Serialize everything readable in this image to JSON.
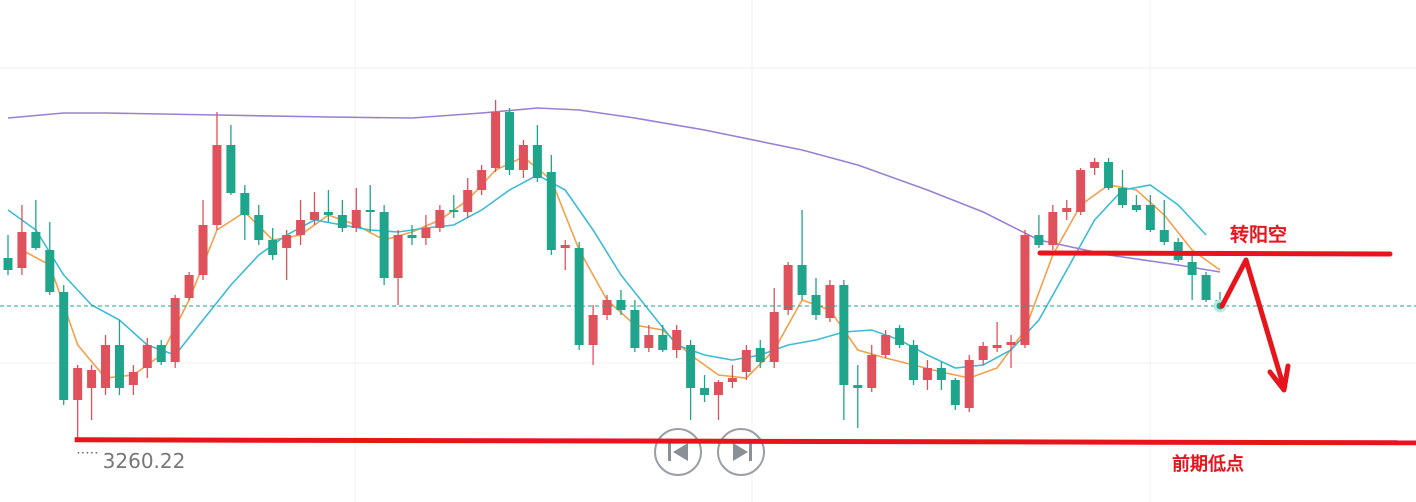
{
  "chart_data": {
    "type": "candlestick",
    "up_color": "#e0525b",
    "down_color": "#1ea58c",
    "ylim": [
      3254,
      3304.2
    ],
    "candles": [
      [
        3278.4,
        3280.7,
        3276.7,
        3277.2
      ],
      [
        3277.4,
        3283.7,
        3276.7,
        3281.0
      ],
      [
        3281.0,
        3284.2,
        3279.2,
        3279.4
      ],
      [
        3279.2,
        3282.0,
        3274.7,
        3275.0
      ],
      [
        3275.0,
        3275.7,
        3263.7,
        3264.2
      ],
      [
        3264.2,
        3267.7,
        3260.22,
        3267.4
      ],
      [
        3265.4,
        3267.7,
        3262.2,
        3267.2
      ],
      [
        3265.4,
        3270.7,
        3264.7,
        3269.7
      ],
      [
        3269.7,
        3272.2,
        3264.7,
        3265.4
      ],
      [
        3265.7,
        3267.7,
        3264.7,
        3267.0
      ],
      [
        3267.4,
        3270.4,
        3266.4,
        3269.7
      ],
      [
        3269.7,
        3270.2,
        3267.7,
        3268.0
      ],
      [
        3268.0,
        3274.7,
        3267.4,
        3274.4
      ],
      [
        3274.4,
        3277.0,
        3274.2,
        3276.7
      ],
      [
        3276.7,
        3284.2,
        3276.2,
        3281.7
      ],
      [
        3281.7,
        3293.0,
        3281.2,
        3289.7
      ],
      [
        3289.7,
        3291.7,
        3284.7,
        3284.9
      ],
      [
        3284.9,
        3285.7,
        3280.2,
        3282.7
      ],
      [
        3282.7,
        3283.7,
        3279.7,
        3280.2
      ],
      [
        3280.2,
        3281.4,
        3278.2,
        3278.7
      ],
      [
        3279.4,
        3281.2,
        3276.2,
        3280.7
      ],
      [
        3280.7,
        3284.2,
        3279.7,
        3282.2
      ],
      [
        3282.2,
        3285.0,
        3281.7,
        3283.0
      ],
      [
        3283.0,
        3285.2,
        3282.0,
        3282.7
      ],
      [
        3282.7,
        3284.2,
        3281.0,
        3281.4
      ],
      [
        3281.4,
        3285.4,
        3281.0,
        3283.2
      ],
      [
        3283.2,
        3285.7,
        3281.0,
        3283.0
      ],
      [
        3283.0,
        3283.7,
        3275.7,
        3276.4
      ],
      [
        3276.4,
        3281.2,
        3273.7,
        3280.7
      ],
      [
        3280.7,
        3281.7,
        3279.7,
        3280.4
      ],
      [
        3280.4,
        3282.7,
        3279.7,
        3281.4
      ],
      [
        3281.4,
        3283.7,
        3281.0,
        3283.2
      ],
      [
        3283.2,
        3284.7,
        3282.4,
        3283.0
      ],
      [
        3283.0,
        3286.4,
        3282.4,
        3285.2
      ],
      [
        3285.2,
        3287.7,
        3284.7,
        3287.2
      ],
      [
        3287.4,
        3294.2,
        3287.0,
        3293.0
      ],
      [
        3293.0,
        3293.4,
        3286.7,
        3287.2
      ],
      [
        3287.2,
        3290.2,
        3286.4,
        3289.7
      ],
      [
        3289.7,
        3291.7,
        3286.0,
        3286.4
      ],
      [
        3287.0,
        3288.7,
        3278.7,
        3279.2
      ],
      [
        3279.4,
        3280.2,
        3277.2,
        3279.7
      ],
      [
        3279.4,
        3280.0,
        3269.2,
        3269.7
      ],
      [
        3269.7,
        3273.7,
        3267.7,
        3272.7
      ],
      [
        3272.7,
        3274.7,
        3272.2,
        3274.2
      ],
      [
        3274.2,
        3275.2,
        3272.7,
        3273.2
      ],
      [
        3273.2,
        3274.2,
        3269.0,
        3269.4
      ],
      [
        3269.4,
        3271.7,
        3269.0,
        3270.7
      ],
      [
        3270.7,
        3271.7,
        3269.0,
        3269.2
      ],
      [
        3269.2,
        3271.7,
        3268.4,
        3271.2
      ],
      [
        3269.7,
        3270.2,
        3262.2,
        3265.4
      ],
      [
        3265.4,
        3266.7,
        3264.0,
        3264.7
      ],
      [
        3264.7,
        3266.2,
        3262.2,
        3266.0
      ],
      [
        3266.0,
        3267.7,
        3265.4,
        3266.4
      ],
      [
        3267.0,
        3269.7,
        3266.2,
        3269.2
      ],
      [
        3269.4,
        3270.2,
        3267.4,
        3268.0
      ],
      [
        3268.0,
        3275.4,
        3267.4,
        3273.0
      ],
      [
        3273.2,
        3278.0,
        3272.7,
        3277.7
      ],
      [
        3277.7,
        3283.2,
        3274.2,
        3274.7
      ],
      [
        3274.7,
        3276.4,
        3272.2,
        3272.7
      ],
      [
        3272.4,
        3276.2,
        3272.0,
        3275.7
      ],
      [
        3275.7,
        3276.2,
        3262.2,
        3265.7
      ],
      [
        3265.7,
        3267.7,
        3261.4,
        3265.4
      ],
      [
        3265.4,
        3269.7,
        3265.0,
        3268.7
      ],
      [
        3268.7,
        3271.2,
        3268.4,
        3270.7
      ],
      [
        3271.4,
        3271.7,
        3269.4,
        3269.7
      ],
      [
        3269.7,
        3270.2,
        3265.7,
        3266.2
      ],
      [
        3266.2,
        3268.2,
        3265.2,
        3267.4
      ],
      [
        3267.4,
        3268.0,
        3265.2,
        3266.2
      ],
      [
        3266.2,
        3266.4,
        3263.2,
        3263.7
      ],
      [
        3263.4,
        3268.7,
        3263.0,
        3268.2
      ],
      [
        3268.2,
        3270.0,
        3267.7,
        3269.6
      ],
      [
        3269.4,
        3272.0,
        3269.0,
        3269.7
      ],
      [
        3269.7,
        3270.7,
        3267.4,
        3270.0
      ],
      [
        3269.7,
        3281.2,
        3269.4,
        3280.7
      ],
      [
        3280.7,
        3282.7,
        3279.4,
        3279.7
      ],
      [
        3279.7,
        3283.7,
        3279.2,
        3283.0
      ],
      [
        3283.0,
        3284.2,
        3282.2,
        3283.4
      ],
      [
        3283.0,
        3287.4,
        3282.7,
        3287.2
      ],
      [
        3287.4,
        3288.4,
        3286.7,
        3288.0
      ],
      [
        3288.0,
        3288.4,
        3285.2,
        3285.4
      ],
      [
        3285.4,
        3287.2,
        3283.4,
        3283.7
      ],
      [
        3283.7,
        3284.7,
        3283.0,
        3283.2
      ],
      [
        3283.7,
        3284.7,
        3281.0,
        3281.2
      ],
      [
        3281.2,
        3284.2,
        3279.7,
        3280.0
      ],
      [
        3280.0,
        3280.4,
        3278.0,
        3278.2
      ],
      [
        3278.0,
        3278.7,
        3274.2,
        3276.7
      ],
      [
        3276.7,
        3277.0,
        3274.0,
        3274.2
      ],
      [
        3274.2,
        3275.0,
        3273.0,
        3273.6
      ]
    ],
    "lines": [
      {
        "color": "#f4a04a",
        "x": [
          1,
          3,
          5,
          7,
          9,
          11,
          13,
          15,
          17,
          19,
          21,
          23,
          25,
          27,
          29,
          31,
          33,
          35,
          37,
          39,
          41,
          43,
          45,
          47,
          49,
          51,
          53,
          55,
          57,
          59,
          61,
          63,
          65,
          67,
          69,
          71,
          73,
          75,
          77,
          79,
          81,
          83,
          85,
          87
        ],
        "values": [
          3279.2,
          3277.7,
          3269.7,
          3266.4,
          3266.7,
          3268.7,
          3274.2,
          3281.2,
          3283.0,
          3280.2,
          3280.7,
          3282.7,
          3281.7,
          3280.2,
          3281.0,
          3282.2,
          3284.2,
          3287.2,
          3288.5,
          3286.2,
          3279.2,
          3274.2,
          3271.7,
          3271.2,
          3268.7,
          3266.7,
          3266.4,
          3269.2,
          3274.2,
          3273.2,
          3269.2,
          3268.4,
          3267.7,
          3267.0,
          3266.4,
          3267.4,
          3271.2,
          3278.7,
          3283.7,
          3285.7,
          3285.2,
          3282.7,
          3279.2,
          3277.2
        ]
      },
      {
        "color": "#3cbcd6",
        "x": [
          0,
          2,
          4,
          6,
          8,
          10,
          12,
          14,
          16,
          18,
          20,
          22,
          24,
          26,
          28,
          30,
          32,
          34,
          36,
          38,
          40,
          42,
          44,
          46,
          48,
          50,
          52,
          54,
          56,
          58,
          60,
          62,
          64,
          66,
          68,
          70,
          72,
          74,
          76,
          78,
          80,
          82,
          84,
          86
        ],
        "values": [
          3283.2,
          3281.2,
          3276.7,
          3273.7,
          3272.2,
          3269.7,
          3268.7,
          3272.2,
          3275.7,
          3278.7,
          3280.7,
          3282.2,
          3281.7,
          3281.2,
          3281.0,
          3281.4,
          3281.7,
          3283.2,
          3285.2,
          3286.7,
          3285.2,
          3281.2,
          3276.7,
          3273.2,
          3269.7,
          3268.7,
          3268.2,
          3268.7,
          3269.7,
          3270.2,
          3271.0,
          3271.2,
          3270.2,
          3268.7,
          3267.4,
          3267.7,
          3269.2,
          3272.2,
          3277.2,
          3282.2,
          3285.2,
          3285.7,
          3283.7,
          3280.7
        ]
      },
      {
        "color": "#9b7fd4",
        "x": [
          0,
          4,
          7,
          15,
          23,
          29,
          34,
          38,
          41,
          45,
          50,
          57,
          61,
          66,
          70,
          74,
          79,
          84,
          87
        ],
        "values": [
          3292.4,
          3292.9,
          3292.9,
          3292.7,
          3292.5,
          3292.4,
          3292.9,
          3293.4,
          3293.2,
          3292.4,
          3291.2,
          3289.2,
          3287.7,
          3285.2,
          3283.0,
          3280.2,
          3278.7,
          3277.7,
          3277.0
        ]
      }
    ],
    "annotations": [
      "转阳空",
      "前期低点"
    ]
  }
}
